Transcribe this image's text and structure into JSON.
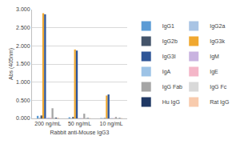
{
  "chart_data": {
    "type": "bar",
    "x_label": "Rabbit anti-Mouse IgG3",
    "y_label": "Abs (405nm)",
    "categories": [
      "200 ng/mL",
      "50 ng/mL",
      "10 ng/mL"
    ],
    "series": [
      {
        "name": "IgG1",
        "color": "#5b9bd5",
        "values": [
          0.07,
          0.03,
          0.01
        ]
      },
      {
        "name": "IgG2a",
        "color": "#a9c4e4",
        "values": [
          0.02,
          0.01,
          0.01
        ]
      },
      {
        "name": "IgG2b",
        "color": "#44546a",
        "values": [
          0.08,
          0.04,
          0.01
        ]
      },
      {
        "name": "IgG3k",
        "color": "#f0a830",
        "values": [
          2.9,
          1.9,
          0.63
        ]
      },
      {
        "name": "IgG3l",
        "color": "#2e5597",
        "values": [
          2.87,
          1.87,
          0.66
        ]
      },
      {
        "name": "IgM",
        "color": "#c9b3e0",
        "values": [
          0.02,
          0.01,
          0.01
        ]
      },
      {
        "name": "IgA",
        "color": "#9dc3e6",
        "values": [
          0.02,
          0.01,
          0.01
        ]
      },
      {
        "name": "IgE",
        "color": "#f4b6c8",
        "values": [
          0.02,
          0.01,
          0.01
        ]
      },
      {
        "name": "IgG Fab",
        "color": "#a5a5a5",
        "values": [
          0.28,
          0.13,
          0.04
        ]
      },
      {
        "name": "IgG Fc",
        "color": "#d9d9d9",
        "values": [
          0.03,
          0.02,
          0.01
        ]
      },
      {
        "name": "Hu IgG",
        "color": "#1f3864",
        "values": [
          0.02,
          0.01,
          0.01
        ]
      },
      {
        "name": "Rat IgG",
        "color": "#f8cbad",
        "values": [
          0.02,
          0.01,
          0.01
        ]
      }
    ],
    "ylim": [
      0,
      3
    ],
    "yticks": [
      {
        "value": 0,
        "label": "0.000"
      },
      {
        "value": 0.5,
        "label": "0.500"
      },
      {
        "value": 1,
        "label": "1.000"
      },
      {
        "value": 1.5,
        "label": "1.500"
      },
      {
        "value": 2,
        "label": "2.000"
      },
      {
        "value": 2.5,
        "label": "2.500"
      },
      {
        "value": 3,
        "label": "3.000"
      }
    ],
    "grid": true,
    "legend": "right"
  }
}
